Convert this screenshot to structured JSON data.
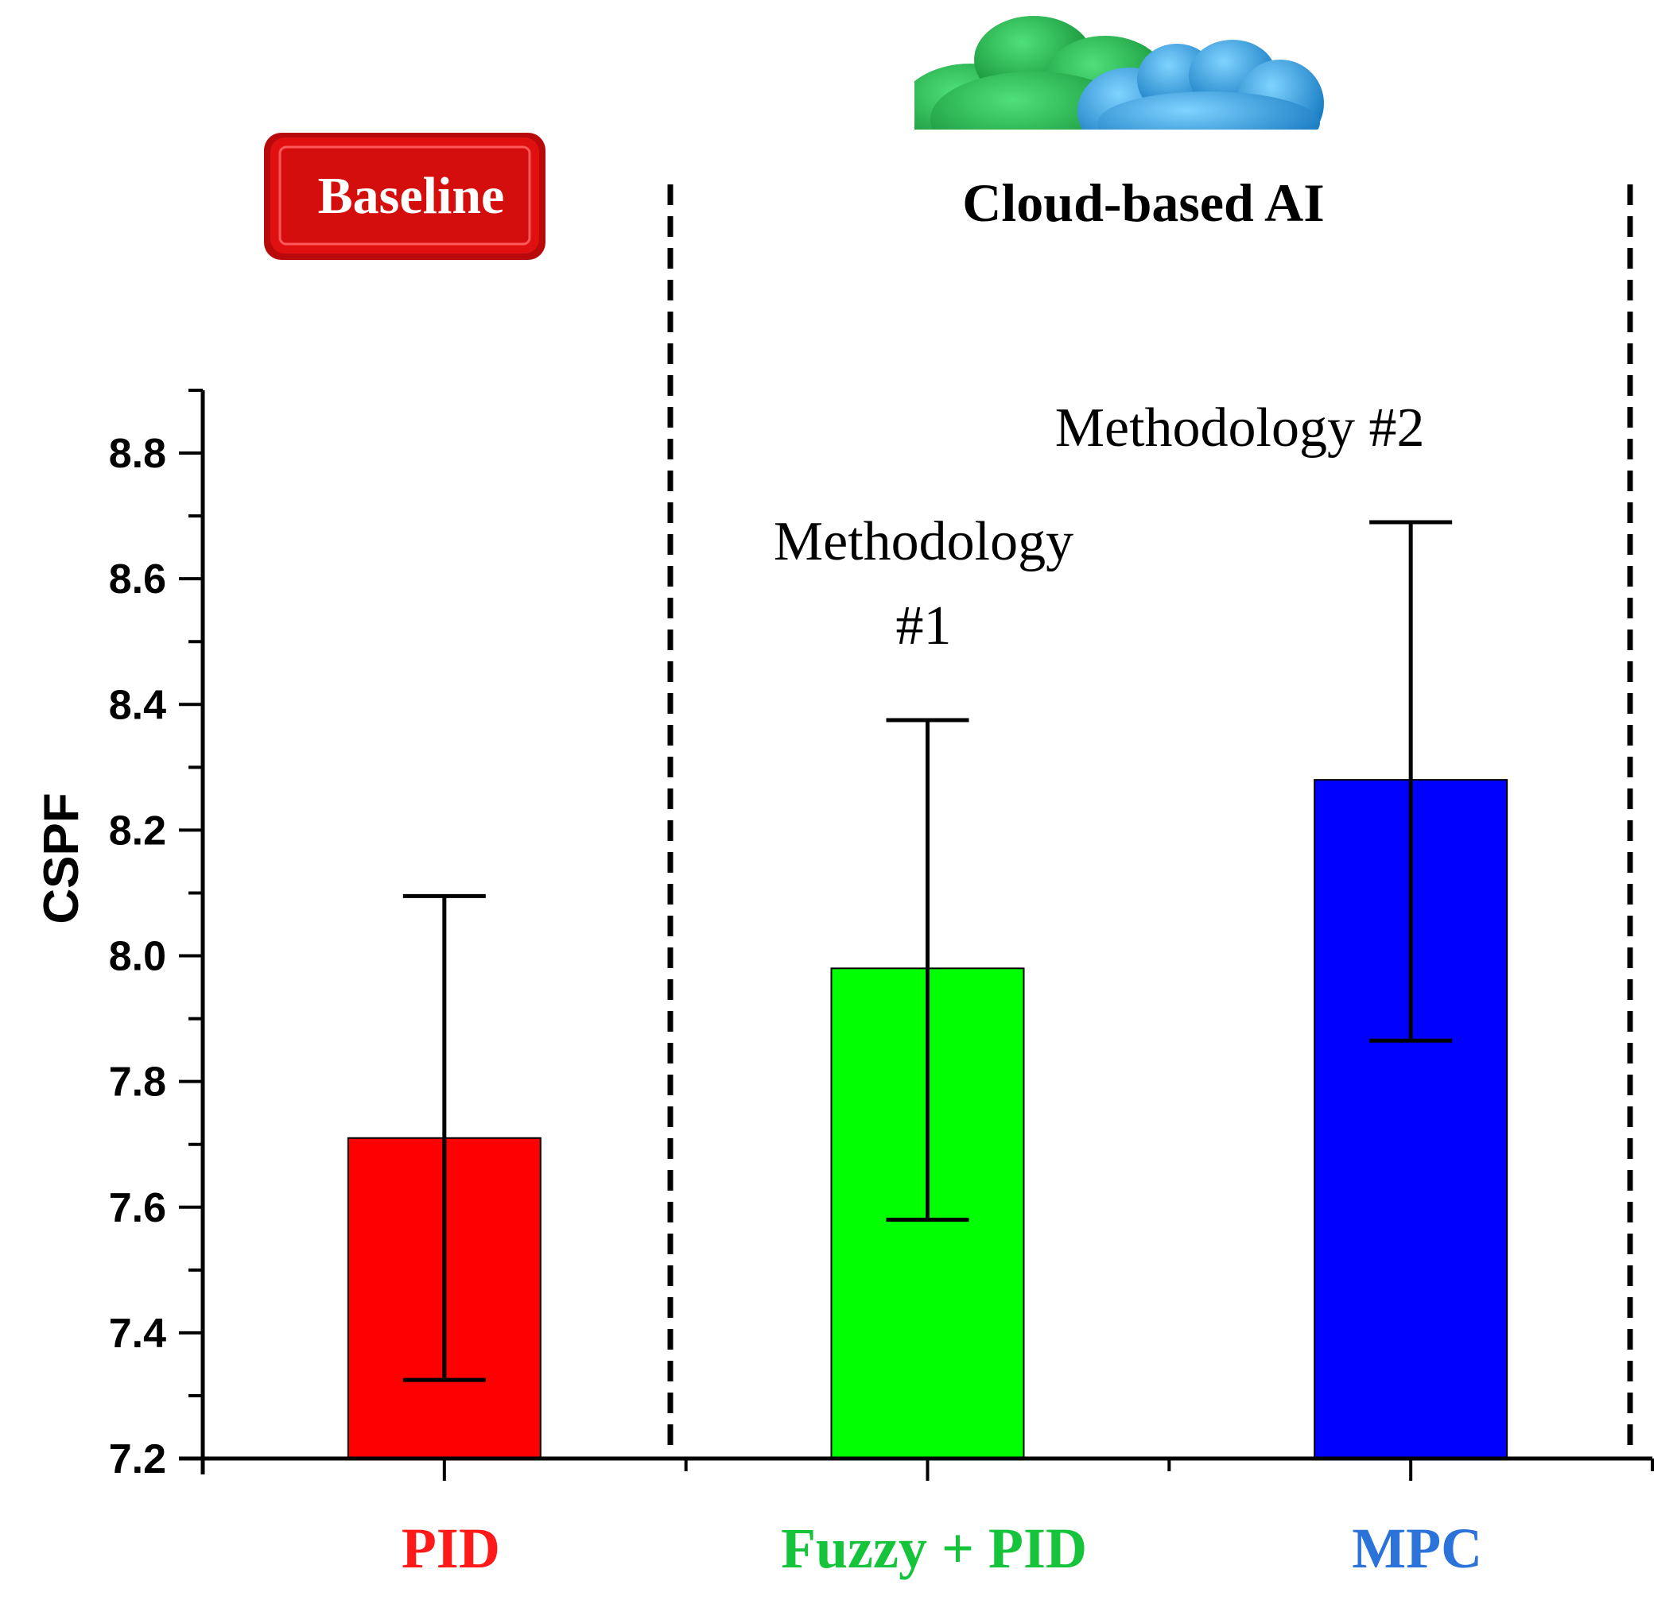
{
  "header": {
    "baseline_badge": "Baseline",
    "cloud_section_title": "Cloud-based AI"
  },
  "annotations": [
    {
      "category_index": 1,
      "lines": [
        "Methodology",
        "#1"
      ]
    },
    {
      "category_index": 2,
      "lines": [
        "Methodology #2"
      ]
    }
  ],
  "colors": {
    "pid": "#ff0000",
    "fuzzy": "#00ff00",
    "mpc": "#0000ff",
    "pid_label": "#ff1a1a",
    "fuzzy_label": "#16c43c",
    "mpc_label": "#2b73d8",
    "badge": "#e01010",
    "cloud_green": "#18b040",
    "cloud_blue": "#2aa0e6"
  },
  "chart_data": {
    "type": "bar",
    "title": "",
    "xlabel": "",
    "ylabel": "CSPF",
    "categories": [
      "PID",
      "Fuzzy + PID",
      "MPC"
    ],
    "values": [
      7.71,
      7.98,
      8.28
    ],
    "error_low": [
      7.325,
      7.58,
      7.865
    ],
    "error_high": [
      8.095,
      8.375,
      8.69
    ],
    "bar_colors": [
      "#ff0000",
      "#00ff00",
      "#0000ff"
    ],
    "label_colors": [
      "#ff1a1a",
      "#16c43c",
      "#2b73d8"
    ],
    "ylim": [
      7.2,
      8.9
    ],
    "yticks": [
      "7.2",
      "7.4",
      "7.6",
      "7.8",
      "8.0",
      "8.2",
      "8.4",
      "8.6",
      "8.8"
    ],
    "grid": false,
    "legend": "none"
  }
}
